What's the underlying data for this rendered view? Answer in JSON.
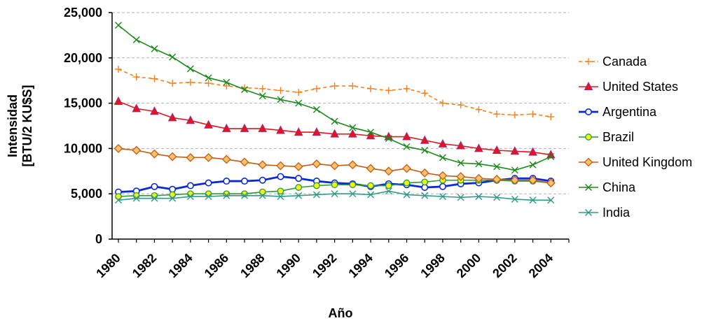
{
  "chart_data": {
    "type": "line",
    "xlabel": "Año",
    "ylabel_line1": "Intensidad",
    "ylabel_line2": "[BTU/2 KU$S]",
    "ylim": [
      0,
      25000
    ],
    "yticks": [
      0,
      5000,
      10000,
      15000,
      20000,
      25000
    ],
    "ytick_labels": [
      "0",
      "5,000",
      "10,000",
      "15,000",
      "20,000",
      "25,000"
    ],
    "xlim": [
      1980,
      2005
    ],
    "xticks": [
      1980,
      1982,
      1984,
      1986,
      1988,
      1990,
      1992,
      1994,
      1996,
      1998,
      2000,
      2002,
      2004
    ],
    "xtick_labels": [
      "1980",
      "1982",
      "1984",
      "1986",
      "1988",
      "1990",
      "1992",
      "1994",
      "1996",
      "1998",
      "2000",
      "2002",
      "2004"
    ],
    "grid": "horizontal-dashed",
    "legend_position": "right",
    "x": [
      1980,
      1981,
      1982,
      1983,
      1984,
      1985,
      1986,
      1987,
      1988,
      1989,
      1990,
      1991,
      1992,
      1993,
      1994,
      1995,
      1996,
      1997,
      1998,
      1999,
      2000,
      2001,
      2002,
      2003,
      2004
    ],
    "series": [
      {
        "name": "Canada",
        "color": "#f58220",
        "style": "dashed",
        "marker": "plus",
        "values": [
          18750,
          17900,
          17700,
          17200,
          17300,
          17200,
          16900,
          16700,
          16600,
          16400,
          16200,
          16600,
          16900,
          16900,
          16600,
          16400,
          16600,
          16100,
          15000,
          14800,
          14300,
          13800,
          13700,
          13800,
          13500
        ]
      },
      {
        "name": "United States",
        "color": "#e8131b",
        "style": "solid",
        "marker": "triangle",
        "values": [
          15200,
          14400,
          14100,
          13400,
          13100,
          12600,
          12200,
          12200,
          12200,
          12000,
          11800,
          11800,
          11600,
          11600,
          11400,
          11300,
          11300,
          10900,
          10500,
          10300,
          10000,
          9800,
          9700,
          9600,
          9300
        ]
      },
      {
        "name": "Argentina",
        "color": "#0a2ad8",
        "style": "solid-thick",
        "marker": "circle-open",
        "values": [
          5200,
          5300,
          5800,
          5500,
          5900,
          6200,
          6400,
          6400,
          6500,
          6900,
          6700,
          6400,
          6200,
          6100,
          5800,
          6100,
          6000,
          5700,
          5800,
          6100,
          6200,
          6500,
          6700,
          6700,
          6400
        ]
      },
      {
        "name": "Brazil",
        "color": "#2f9a35",
        "style": "solid",
        "marker": "circle-yellow",
        "values": [
          4700,
          4800,
          4800,
          4900,
          5000,
          5000,
          5000,
          5000,
          5200,
          5300,
          5700,
          5900,
          6000,
          6000,
          5900,
          5900,
          6200,
          6300,
          6500,
          6500,
          6500,
          6500,
          6400,
          6400,
          6200
        ]
      },
      {
        "name": "United Kingdom",
        "color": "#c85a12",
        "style": "solid",
        "marker": "diamond",
        "values": [
          10000,
          9800,
          9400,
          9100,
          9000,
          9000,
          8800,
          8500,
          8200,
          8100,
          8000,
          8300,
          8100,
          8200,
          7800,
          7500,
          7800,
          7300,
          7000,
          6900,
          6700,
          6600,
          6500,
          6500,
          6200
        ]
      },
      {
        "name": "China",
        "color": "#1a8a1a",
        "style": "solid",
        "marker": "x",
        "values": [
          23600,
          22000,
          21000,
          20100,
          18800,
          17800,
          17300,
          16500,
          15800,
          15400,
          15000,
          14300,
          13000,
          12300,
          11800,
          11100,
          10200,
          9800,
          9000,
          8400,
          8300,
          8000,
          7600,
          8200,
          9100
        ]
      },
      {
        "name": "India",
        "color": "#2f9a8a",
        "style": "solid",
        "marker": "x",
        "values": [
          4300,
          4500,
          4500,
          4500,
          4700,
          4700,
          4800,
          4800,
          4800,
          4700,
          4800,
          4900,
          5000,
          5000,
          4900,
          5300,
          4900,
          4800,
          4700,
          4600,
          4700,
          4600,
          4400,
          4300,
          4300
        ]
      }
    ]
  }
}
